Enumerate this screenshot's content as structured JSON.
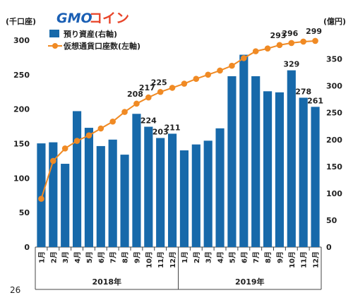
{
  "logo": {
    "part1": "GMO",
    "part2": "コイン"
  },
  "left_axis_unit": "(千口座)",
  "right_axis_unit": "(億円)",
  "footnote": "26",
  "colors": {
    "bar": "#1769aa",
    "line": "#f08a24",
    "axis": "#444444"
  },
  "chart_data": {
    "type": "bar",
    "categories": [
      "1月",
      "2月",
      "3月",
      "4月",
      "5月",
      "6月",
      "7月",
      "8月",
      "9月",
      "10月",
      "11月",
      "12月",
      "1月",
      "2月",
      "3月",
      "4月",
      "5月",
      "6月",
      "7月",
      "8月",
      "9月",
      "10月",
      "11月",
      "12月"
    ],
    "year_groups": [
      {
        "label": "2018年",
        "count": 12
      },
      {
        "label": "2019年",
        "count": 12
      }
    ],
    "left_axis": {
      "ticks": [
        0,
        50,
        100,
        150,
        200,
        250,
        300
      ],
      "ylim": [
        0,
        300
      ]
    },
    "right_axis": {
      "ticks": [
        0,
        50,
        100,
        150,
        200,
        250,
        300,
        350
      ],
      "ylim": [
        0,
        385
      ]
    },
    "series": [
      {
        "name": "預り資産(右軸)",
        "type": "bar",
        "axis": "right",
        "values": [
          193,
          195,
          155,
          253,
          222,
          188,
          200,
          172,
          248,
          224,
          203,
          211,
          180,
          191,
          198,
          221,
          318,
          358,
          318,
          290,
          288,
          329,
          278,
          261
        ],
        "data_labels": [
          "",
          "",
          "",
          "",
          "",
          "",
          "",
          "",
          "",
          "224",
          "203",
          "211",
          "",
          "",
          "",
          "",
          "",
          "",
          "",
          "",
          "",
          "329",
          "278",
          "261"
        ]
      },
      {
        "name": "仮想通貨口座数(左軸)",
        "type": "line",
        "axis": "left",
        "values": [
          70,
          125,
          143,
          154,
          162,
          172,
          182,
          196,
          208,
          217,
          225,
          231,
          237,
          244,
          250,
          256,
          263,
          274,
          284,
          288,
          293,
          296,
          298,
          299
        ],
        "data_labels": [
          "",
          "",
          "",
          "",
          "",
          "",
          "",
          "",
          "208",
          "217",
          "225",
          "",
          "",
          "",
          "",
          "",
          "",
          "",
          "",
          "",
          "293",
          "296",
          "",
          "299"
        ]
      }
    ]
  }
}
